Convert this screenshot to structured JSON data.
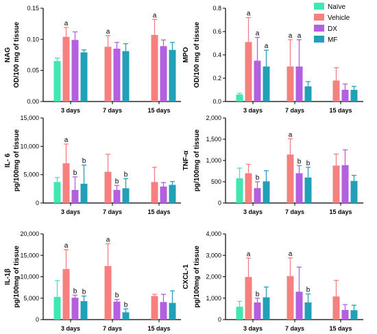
{
  "legend": {
    "items": [
      {
        "name": "Naïve",
        "color": "#3ee8b0"
      },
      {
        "name": "Vehicle",
        "color": "#f48080"
      },
      {
        "name": "DX",
        "color": "#b45ee0"
      },
      {
        "name": "MF",
        "color": "#22a0b8"
      }
    ]
  },
  "chart_data": [
    {
      "type": "bar",
      "ylabel_lines": [
        "NAG",
        "OD/100 mg of tissue"
      ],
      "categories": [
        "3 days",
        "7 days",
        "15 days"
      ],
      "ylim": [
        0,
        0.15
      ],
      "yticks": [
        0,
        0.05,
        0.1,
        0.15
      ],
      "ytick_labels": [
        "0.00",
        "0.05",
        "0.10",
        "0.15"
      ],
      "series": [
        {
          "name": "Naïve",
          "values": [
            0.065,
            null,
            null
          ],
          "errors": [
            0.005,
            null,
            null
          ],
          "sig": [
            "",
            "",
            ""
          ]
        },
        {
          "name": "Vehicle",
          "values": [
            0.104,
            0.088,
            0.107
          ],
          "errors": [
            0.015,
            0.018,
            0.025
          ],
          "sig": [
            "a",
            "a",
            "a"
          ]
        },
        {
          "name": "DX",
          "values": [
            0.099,
            0.085,
            0.089
          ],
          "errors": [
            0.013,
            0.01,
            0.01
          ],
          "sig": [
            "",
            "",
            ""
          ]
        },
        {
          "name": "MF",
          "values": [
            0.079,
            0.081,
            0.083
          ],
          "errors": [
            0.004,
            0.012,
            0.012
          ],
          "sig": [
            "",
            "",
            ""
          ]
        }
      ]
    },
    {
      "type": "bar",
      "ylabel_lines": [
        "MPO",
        "OD/100 mg of tissue"
      ],
      "categories": [
        "3 days",
        "7 days",
        "15 days"
      ],
      "ylim": [
        0,
        0.8
      ],
      "yticks": [
        0,
        0.2,
        0.4,
        0.6,
        0.8
      ],
      "ytick_labels": [
        "0.0",
        "0.2",
        "0.4",
        "0.6",
        "0.8"
      ],
      "series": [
        {
          "name": "Naïve",
          "values": [
            0.06,
            null,
            null
          ],
          "errors": [
            0.01,
            null,
            null
          ],
          "sig": [
            "",
            "",
            ""
          ]
        },
        {
          "name": "Vehicle",
          "values": [
            0.51,
            0.3,
            0.18
          ],
          "errors": [
            0.21,
            0.23,
            0.11
          ],
          "sig": [
            "a",
            "a",
            ""
          ]
        },
        {
          "name": "DX",
          "values": [
            0.35,
            0.3,
            0.1
          ],
          "errors": [
            0.2,
            0.23,
            0.05
          ],
          "sig": [
            "a",
            "a",
            ""
          ]
        },
        {
          "name": "MF",
          "values": [
            0.3,
            0.13,
            0.1
          ],
          "errors": [
            0.14,
            0.04,
            0.03
          ],
          "sig": [
            "a",
            "",
            ""
          ]
        }
      ]
    },
    {
      "type": "bar",
      "ylabel_lines": [
        "IL- 6",
        "pg/100mg of tissue"
      ],
      "categories": [
        "3 days",
        "7 days",
        "15 days"
      ],
      "ylim": [
        0,
        15000
      ],
      "yticks": [
        0,
        5000,
        10000,
        15000
      ],
      "ytick_labels": [
        "0",
        "5,000",
        "10,000",
        "15,000"
      ],
      "series": [
        {
          "name": "Naïve",
          "values": [
            3700,
            null,
            null
          ],
          "errors": [
            800,
            null,
            null
          ],
          "sig": [
            "",
            "",
            ""
          ]
        },
        {
          "name": "Vehicle",
          "values": [
            7000,
            5500,
            3700
          ],
          "errors": [
            3400,
            3100,
            2600
          ],
          "sig": [
            "a",
            "",
            ""
          ]
        },
        {
          "name": "DX",
          "values": [
            2300,
            2300,
            2900
          ],
          "errors": [
            2300,
            800,
            700
          ],
          "sig": [
            "b",
            "b",
            ""
          ]
        },
        {
          "name": "MF",
          "values": [
            3400,
            2600,
            3200
          ],
          "errors": [
            3300,
            1700,
            600
          ],
          "sig": [
            "b",
            "b",
            ""
          ]
        }
      ]
    },
    {
      "type": "bar",
      "ylabel_lines": [
        "TNF-α",
        "pg/100mg of tissue"
      ],
      "categories": [
        "3 days",
        "7 days",
        "15 days"
      ],
      "ylim": [
        0,
        2000
      ],
      "yticks": [
        0,
        500,
        1000,
        1500,
        2000
      ],
      "ytick_labels": [
        "0",
        "500",
        "1,000",
        "1,500",
        "2,000"
      ],
      "series": [
        {
          "name": "Naïve",
          "values": [
            580,
            null,
            null
          ],
          "errors": [
            240,
            null,
            null
          ],
          "sig": [
            "",
            "",
            ""
          ]
        },
        {
          "name": "Vehicle",
          "values": [
            700,
            1140,
            880
          ],
          "errors": [
            210,
            370,
            270
          ],
          "sig": [
            "",
            "a",
            ""
          ]
        },
        {
          "name": "DX",
          "values": [
            350,
            700,
            890
          ],
          "errors": [
            150,
            180,
            360
          ],
          "sig": [
            "b",
            "b",
            ""
          ]
        },
        {
          "name": "MF",
          "values": [
            510,
            600,
            520
          ],
          "errors": [
            250,
            240,
            130
          ],
          "sig": [
            "",
            "b",
            ""
          ]
        }
      ]
    },
    {
      "type": "bar",
      "ylabel_lines": [
        "IL-1β",
        "pg/100mg of tissue"
      ],
      "categories": [
        "3 days",
        "7 days",
        "15 days"
      ],
      "ylim": [
        0,
        20000
      ],
      "yticks": [
        0,
        5000,
        10000,
        15000,
        20000
      ],
      "ytick_labels": [
        "0",
        "5,000",
        "10,000",
        "15,000",
        "20,000"
      ],
      "series": [
        {
          "name": "Naïve",
          "values": [
            5300,
            null,
            null
          ],
          "errors": [
            3800,
            null,
            null
          ],
          "sig": [
            "",
            "",
            ""
          ]
        },
        {
          "name": "Vehicle",
          "values": [
            11800,
            12500,
            5500
          ],
          "errors": [
            4500,
            5200,
            400
          ],
          "sig": [
            "a",
            "a",
            ""
          ]
        },
        {
          "name": "DX",
          "values": [
            5100,
            4200,
            4100
          ],
          "errors": [
            600,
            500,
            1800
          ],
          "sig": [
            "b",
            "b",
            ""
          ]
        },
        {
          "name": "MF",
          "values": [
            4300,
            1700,
            3900
          ],
          "errors": [
            1200,
            800,
            2800
          ],
          "sig": [
            "b",
            "b",
            ""
          ]
        }
      ]
    },
    {
      "type": "bar",
      "ylabel_lines": [
        "CXCL-1",
        "pg/100mg of tissue"
      ],
      "categories": [
        "3 days",
        "7 days",
        "15 days"
      ],
      "ylim": [
        0,
        4000
      ],
      "yticks": [
        0,
        1000,
        2000,
        3000,
        4000
      ],
      "ytick_labels": [
        "0",
        "1,000",
        "2,000",
        "3,000",
        "4,000"
      ],
      "series": [
        {
          "name": "Naïve",
          "values": [
            600,
            null,
            null
          ],
          "errors": [
            250,
            null,
            null
          ],
          "sig": [
            "",
            "",
            ""
          ]
        },
        {
          "name": "Vehicle",
          "values": [
            1990,
            2030,
            1080
          ],
          "errors": [
            880,
            850,
            750
          ],
          "sig": [
            "a",
            "a",
            ""
          ]
        },
        {
          "name": "DX",
          "values": [
            800,
            1300,
            450
          ],
          "errors": [
            200,
            1150,
            250
          ],
          "sig": [
            "b",
            "",
            ""
          ]
        },
        {
          "name": "MF",
          "values": [
            1040,
            800,
            440
          ],
          "errors": [
            480,
            400,
            230
          ],
          "sig": [
            "",
            "b",
            ""
          ]
        }
      ]
    }
  ]
}
